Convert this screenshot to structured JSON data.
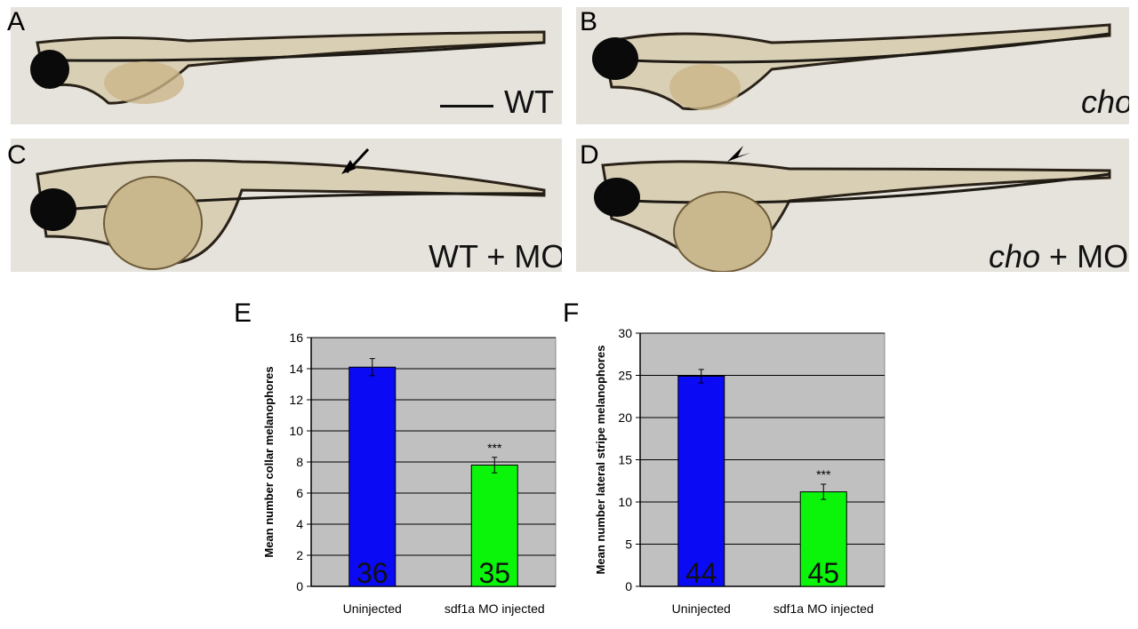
{
  "panels": {
    "A": {
      "letter": "A",
      "label": "WT"
    },
    "B": {
      "letter": "B",
      "label_italic": "cho"
    },
    "C": {
      "letter": "C",
      "label": "WT + MO"
    },
    "D": {
      "letter": "D",
      "label_italic": "cho",
      "label_rest": " + MO"
    }
  },
  "colors": {
    "uninjected_bar": "#0a0af5",
    "injected_bar": "#0af50a",
    "plot_bg": "#c0c0c0"
  },
  "chart_data": [
    {
      "panel": "E",
      "type": "bar",
      "ylabel": "Mean number collar melanophores",
      "categories": [
        "Uninjected",
        "sdf1a MO injected"
      ],
      "values": [
        14.1,
        7.8
      ],
      "errors": [
        0.55,
        0.5
      ],
      "n_labels": [
        "36",
        "35"
      ],
      "significance": [
        "",
        "***"
      ],
      "ylim": [
        0,
        16
      ],
      "yticks": [
        0,
        2,
        4,
        6,
        8,
        10,
        12,
        14,
        16
      ],
      "grid": true
    },
    {
      "panel": "F",
      "type": "bar",
      "ylabel": "Mean number lateral stripe melanophores",
      "categories": [
        "Uninjected",
        "sdf1a MO injected"
      ],
      "values": [
        24.9,
        11.2
      ],
      "errors": [
        0.8,
        0.9
      ],
      "n_labels": [
        "44",
        "45"
      ],
      "significance": [
        "",
        "***"
      ],
      "ylim": [
        0,
        30
      ],
      "yticks": [
        0,
        5,
        10,
        15,
        20,
        25,
        30
      ],
      "grid": true
    }
  ]
}
